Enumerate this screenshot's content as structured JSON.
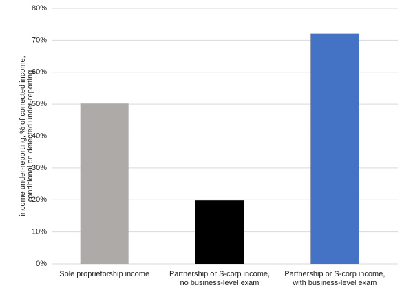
{
  "chart_data": {
    "type": "bar",
    "ylabel": [
      "income under-reporting, % of corrected income,",
      "conditional on detected under-reporting"
    ],
    "categories": [
      [
        "Sole proprietorship income"
      ],
      [
        "Partnership or S-corp income,",
        "no business-level exam"
      ],
      [
        "Partnership or S-corp income,",
        "with business-level exam"
      ]
    ],
    "values": [
      50.2,
      19.8,
      72.1
    ],
    "colors": [
      "#aeaaa8",
      "#000000",
      "#4472c4"
    ],
    "ylim": [
      0,
      80
    ],
    "yticks": [
      {
        "value": 0,
        "label": "0%"
      },
      {
        "value": 10,
        "label": "10%"
      },
      {
        "value": 20,
        "label": "20%"
      },
      {
        "value": 30,
        "label": "30%"
      },
      {
        "value": 40,
        "label": "40%"
      },
      {
        "value": 50,
        "label": "50%"
      },
      {
        "value": 60,
        "label": "60%"
      },
      {
        "value": 70,
        "label": "70%"
      },
      {
        "value": 80,
        "label": "80%"
      }
    ],
    "grid": true
  }
}
